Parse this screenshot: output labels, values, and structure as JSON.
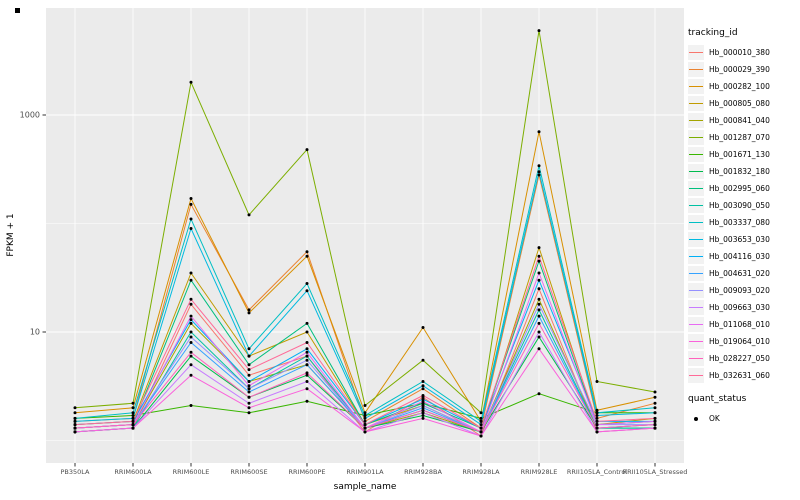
{
  "chart_data": {
    "type": "line",
    "title": "",
    "xlabel": "sample_name",
    "ylabel": "FPKM + 1",
    "y_scale": "log10",
    "grid": true,
    "panel_bg": "#EBEBEB",
    "grid_color": "#FFFFFF",
    "point_color": "#000000",
    "axis_text_color": "#4D4D4D",
    "y_ticks": [
      10,
      1000
    ],
    "y_tick_labels": [
      "10",
      "1000"
    ],
    "y_minor_ticks": [
      1,
      100
    ],
    "ylim": [
      0.62,
      9700
    ],
    "legend_title": "tracking_id",
    "legend_position": "right",
    "legend2_title": "quant_status",
    "legend2_items": [
      {
        "label": "OK"
      }
    ],
    "categories": [
      "PB350LA",
      "RRIM600LA",
      "RRIM600LE",
      "RRIM600SE",
      "RRIM600PE",
      "RRIM901LA",
      "RRIM928BA",
      "RRIM928LA",
      "RRIM928LE",
      "RRII105LA_Control",
      "RRII105LA_Stressed"
    ],
    "series": [
      {
        "name": "Hb_000010_380",
        "color": "#F8766D",
        "values": [
          1.2,
          1.3,
          18,
          4,
          6,
          1.2,
          2.5,
          1.1,
          25,
          1.2,
          1.3
        ]
      },
      {
        "name": "Hb_000029_390",
        "color": "#EA8331",
        "values": [
          1.5,
          1.6,
          150,
          16,
          55,
          1.5,
          3,
          1.3,
          280,
          1.6,
          2.2
        ]
      },
      {
        "name": "Hb_000282_100",
        "color": "#D89000",
        "values": [
          1.8,
          2.0,
          170,
          15,
          50,
          1.8,
          11,
          1.5,
          700,
          1.9,
          2.5
        ]
      },
      {
        "name": "Hb_000805_080",
        "color": "#C09B00",
        "values": [
          1.4,
          1.5,
          35,
          6,
          10,
          1.4,
          2.1,
          1.2,
          60,
          1.4,
          1.6
        ]
      },
      {
        "name": "Hb_000841_040",
        "color": "#A3A500",
        "values": [
          1.3,
          1.4,
          12,
          3.5,
          5,
          1.3,
          1.8,
          1.2,
          20,
          1.3,
          1.4
        ]
      },
      {
        "name": "Hb_001287_070",
        "color": "#7CAE00",
        "values": [
          2.0,
          2.2,
          2000,
          120,
          480,
          2.1,
          5.5,
          1.8,
          6000,
          3.5,
          2.8
        ]
      },
      {
        "name": "Hb_001671_130",
        "color": "#39B600",
        "values": [
          1.6,
          1.7,
          2.1,
          1.8,
          2.3,
          1.7,
          2.2,
          1.6,
          2.7,
          1.8,
          1.8
        ]
      },
      {
        "name": "Hb_001832_180",
        "color": "#00BB4E",
        "values": [
          1.2,
          1.3,
          6,
          2.5,
          4,
          1.3,
          1.7,
          1.2,
          9,
          1.3,
          1.3
        ]
      },
      {
        "name": "Hb_002995_060",
        "color": "#00BF7D",
        "values": [
          1.3,
          1.4,
          30,
          5,
          12,
          1.4,
          2.2,
          1.3,
          45,
          1.4,
          1.5
        ]
      },
      {
        "name": "Hb_003090_050",
        "color": "#00C1A3",
        "values": [
          1.2,
          1.3,
          10,
          3,
          6,
          1.3,
          1.9,
          1.2,
          16,
          1.3,
          1.3
        ]
      },
      {
        "name": "Hb_003337_080",
        "color": "#00BFC4",
        "values": [
          1.6,
          1.8,
          110,
          7,
          28,
          1.7,
          3.5,
          1.5,
          340,
          1.8,
          2.0
        ]
      },
      {
        "name": "Hb_003653_030",
        "color": "#00BAE0",
        "values": [
          1.5,
          1.6,
          90,
          6,
          24,
          1.6,
          3.2,
          1.4,
          300,
          1.7,
          1.8
        ]
      },
      {
        "name": "Hb_004116_030",
        "color": "#00B0F6",
        "values": [
          1.4,
          1.5,
          13,
          3.5,
          7,
          1.4,
          2.4,
          1.3,
          30,
          1.5,
          1.5
        ]
      },
      {
        "name": "Hb_004631_020",
        "color": "#35A2FF",
        "values": [
          1.3,
          1.4,
          8,
          2.8,
          5,
          1.3,
          2.0,
          1.2,
          14,
          1.3,
          1.4
        ]
      },
      {
        "name": "Hb_009093_020",
        "color": "#9590FF",
        "values": [
          1.3,
          1.4,
          9,
          3,
          5.5,
          1.3,
          2.1,
          1.2,
          18,
          1.4,
          1.4
        ]
      },
      {
        "name": "Hb_009663_030",
        "color": "#C77CFF",
        "values": [
          1.2,
          1.3,
          5,
          2.2,
          3.5,
          1.2,
          1.8,
          1.1,
          10,
          1.2,
          1.3
        ]
      },
      {
        "name": "Hb_011068_010",
        "color": "#E76BF3",
        "values": [
          1.3,
          1.4,
          14,
          3.2,
          6.5,
          1.3,
          2.3,
          1.2,
          35,
          1.4,
          1.5
        ]
      },
      {
        "name": "Hb_019064_010",
        "color": "#FA62DB",
        "values": [
          1.2,
          1.3,
          4,
          2,
          3,
          1.2,
          1.6,
          1.1,
          7,
          1.2,
          1.3
        ]
      },
      {
        "name": "Hb_028227_050",
        "color": "#FF62BC",
        "values": [
          1.3,
          1.4,
          6.5,
          2.5,
          4.2,
          1.3,
          1.9,
          1.2,
          12,
          1.3,
          1.4
        ]
      },
      {
        "name": "Hb_032631_060",
        "color": "#FF6A98",
        "values": [
          1.4,
          1.5,
          20,
          4.5,
          8,
          1.4,
          2.6,
          1.3,
          50,
          1.5,
          1.6
        ]
      }
    ]
  }
}
